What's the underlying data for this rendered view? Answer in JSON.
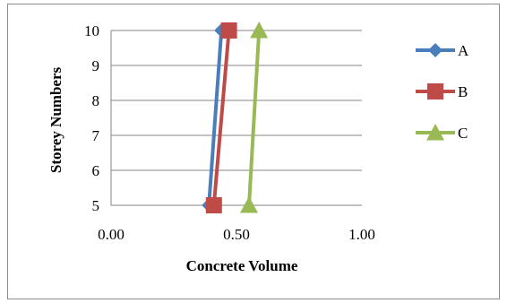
{
  "chart_data": {
    "type": "line",
    "xlabel": "Concrete Volume",
    "ylabel": "Storey Numbers",
    "xlim": [
      0.0,
      1.0
    ],
    "ylim": [
      5,
      10
    ],
    "x_ticks": [
      "0.00",
      "0.50",
      "1.00"
    ],
    "y_ticks": [
      "5",
      "6",
      "7",
      "8",
      "9",
      "10"
    ],
    "grid": "horizontal",
    "legend_position": "right",
    "series": [
      {
        "name": "A",
        "color": "#4A7EBB",
        "marker": "diamond",
        "points": [
          {
            "x": 0.39,
            "y": 5
          },
          {
            "x": 0.44,
            "y": 10
          }
        ]
      },
      {
        "name": "B",
        "color": "#BE4B48",
        "marker": "square",
        "points": [
          {
            "x": 0.41,
            "y": 5
          },
          {
            "x": 0.47,
            "y": 10
          }
        ]
      },
      {
        "name": "C",
        "color": "#98B954",
        "marker": "triangle",
        "points": [
          {
            "x": 0.55,
            "y": 5
          },
          {
            "x": 0.59,
            "y": 10
          }
        ]
      }
    ]
  }
}
